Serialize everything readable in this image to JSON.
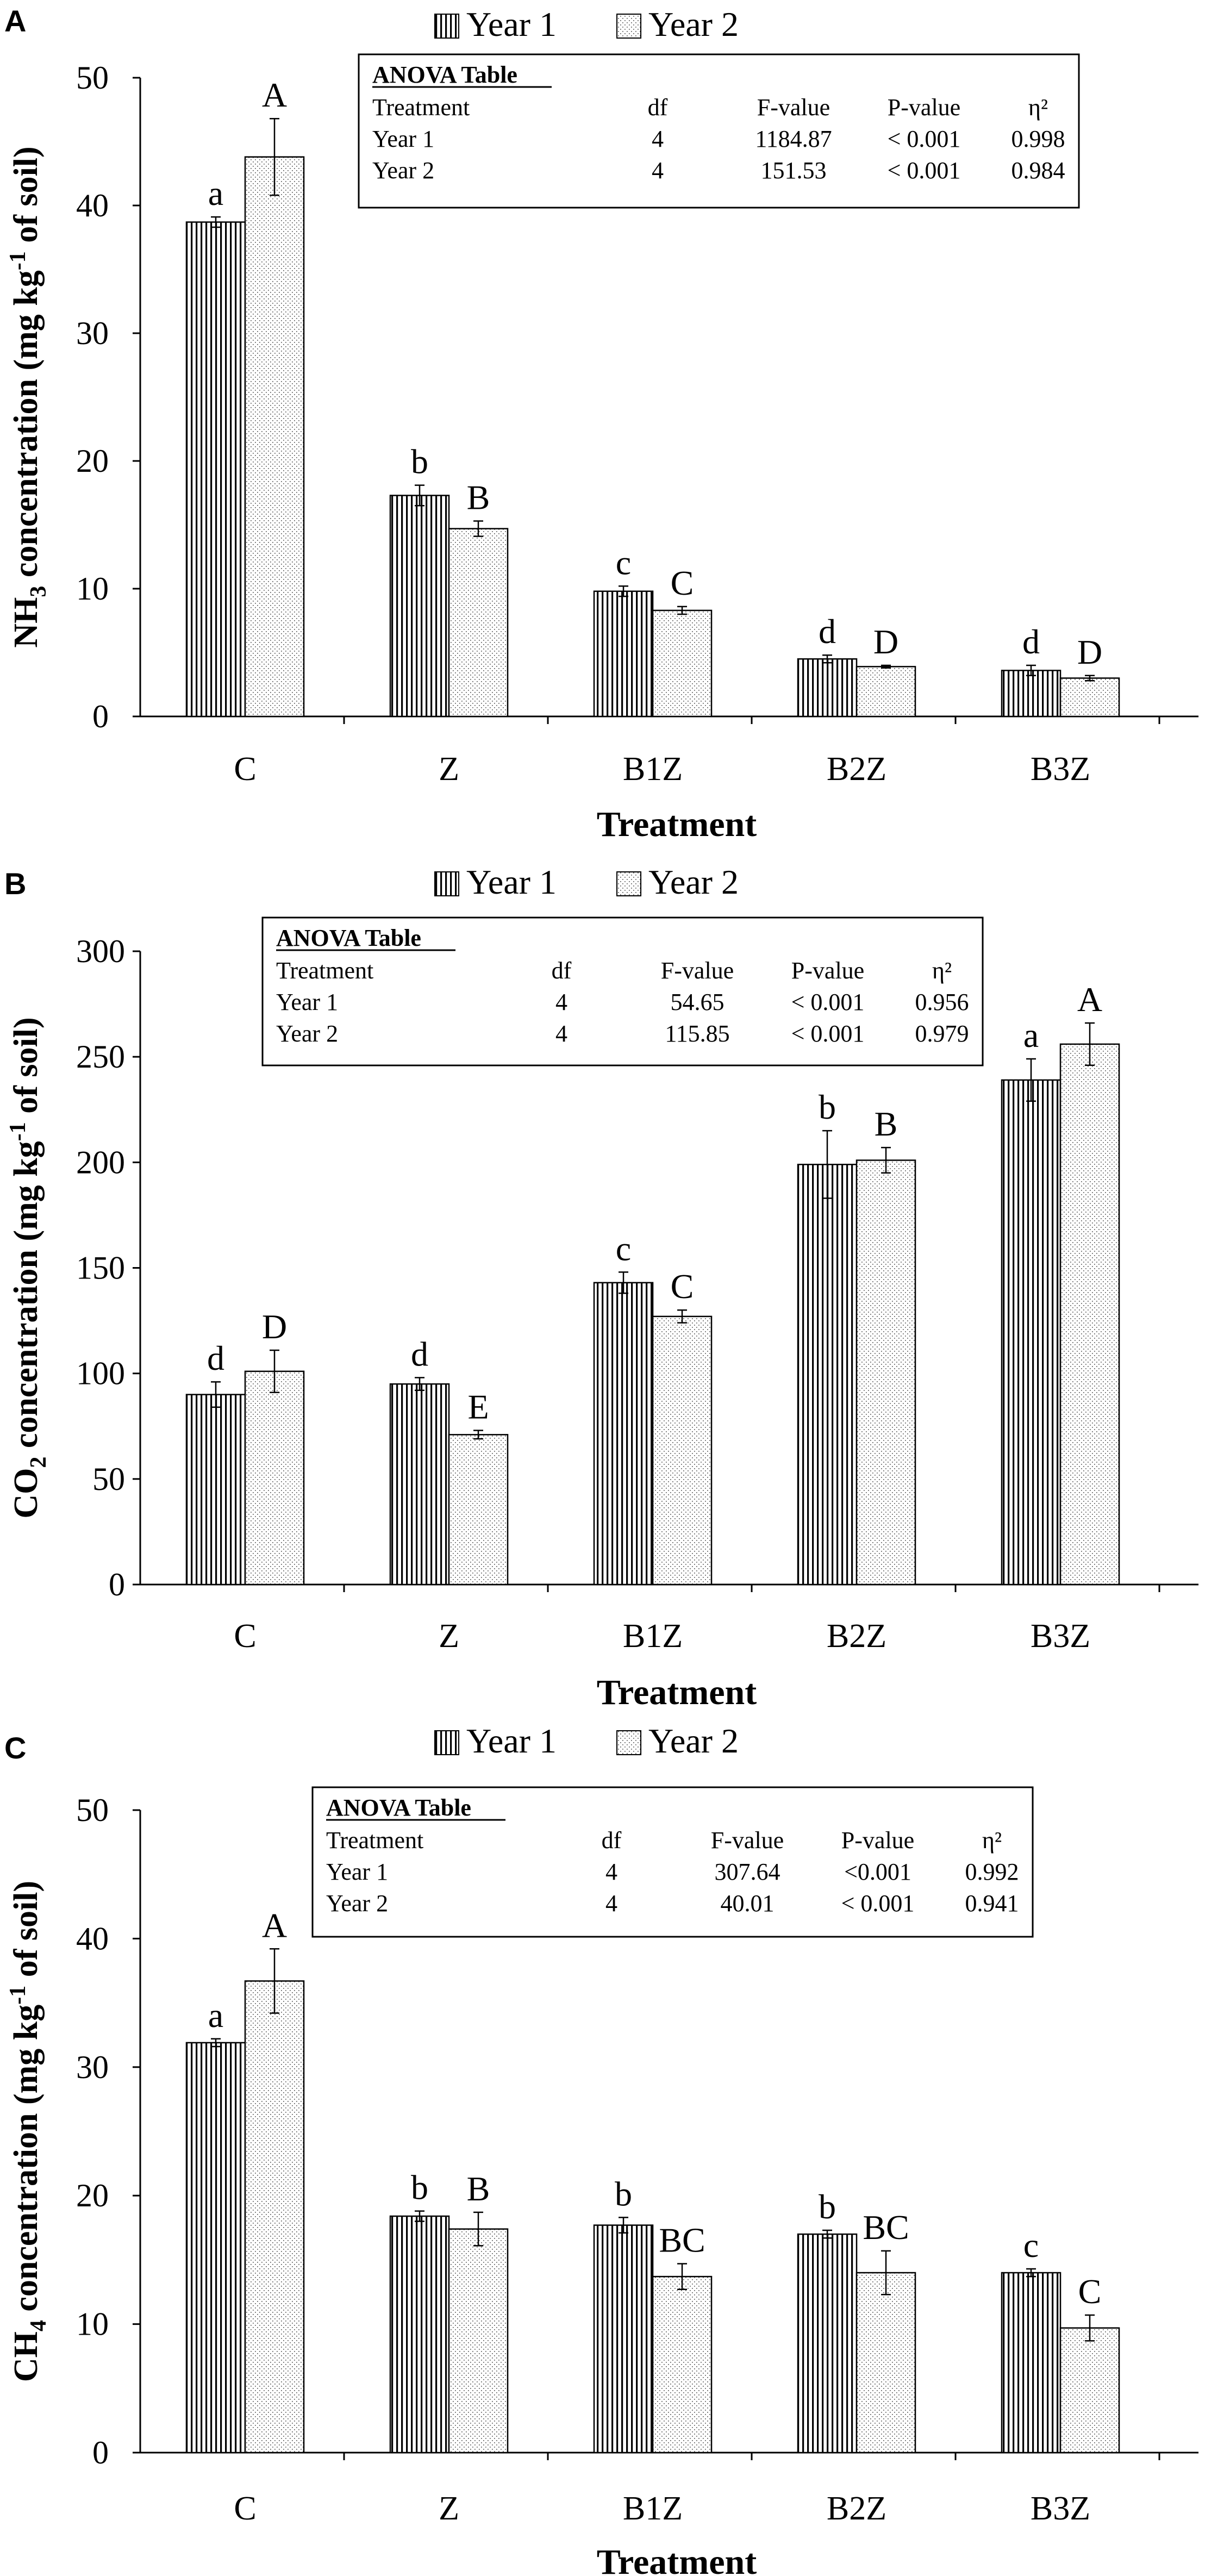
{
  "colors": {
    "background": "#ffffff",
    "ink": "#000000"
  },
  "chart_data": [
    {
      "panel": "A",
      "type": "bar",
      "title": "",
      "xlabel": "Treatment",
      "ylabel": "NH3 concentration (mg kg-1 of soil)",
      "ylabel_parts": {
        "pre": "NH",
        "sub": "3",
        "mid": " concentration (mg kg",
        "sup": "-1",
        "post": " of soil)"
      },
      "ylim": [
        0,
        50
      ],
      "yticks": [
        0,
        10,
        20,
        30,
        40,
        50
      ],
      "categories": [
        "C",
        "Z",
        "B1Z",
        "B2Z",
        "B3Z"
      ],
      "legend": [
        "Year 1",
        "Year 2"
      ],
      "legend_position": "top-center",
      "series": [
        {
          "name": "Year 1",
          "pattern": "vertical-lines",
          "values": [
            38.7,
            17.3,
            9.8,
            4.5,
            3.6
          ],
          "errors": [
            0.4,
            0.8,
            0.4,
            0.3,
            0.4
          ],
          "letters": [
            "a",
            "b",
            "c",
            "d",
            "d"
          ]
        },
        {
          "name": "Year 2",
          "pattern": "dots",
          "values": [
            43.8,
            14.7,
            8.3,
            3.9,
            3.0
          ],
          "errors": [
            3.0,
            0.6,
            0.3,
            0.1,
            0.2
          ],
          "letters": [
            "A",
            "B",
            "C",
            "D",
            "D"
          ]
        }
      ],
      "anova": {
        "title": "ANOVA Table",
        "headers": [
          "Treatment",
          "df",
          "F-value",
          "P-value",
          "η²"
        ],
        "rows": [
          [
            "Year 1",
            "4",
            "1184.87",
            "< 0.001",
            "0.998"
          ],
          [
            "Year 2",
            "4",
            "151.53",
            "< 0.001",
            "0.984"
          ]
        ]
      }
    },
    {
      "panel": "B",
      "type": "bar",
      "title": "",
      "xlabel": "Treatment",
      "ylabel": "CO2 concentration (mg kg-1 of soil)",
      "ylabel_parts": {
        "pre": "CO",
        "sub": "2",
        "mid": " concentration (mg kg",
        "sup": "-1",
        "post": " of soil)"
      },
      "ylim": [
        0,
        300
      ],
      "yticks": [
        0,
        50,
        100,
        150,
        200,
        250,
        300
      ],
      "categories": [
        "C",
        "Z",
        "B1Z",
        "B2Z",
        "B3Z"
      ],
      "legend": [
        "Year 1",
        "Year 2"
      ],
      "legend_position": "top-center",
      "series": [
        {
          "name": "Year 1",
          "pattern": "vertical-lines",
          "values": [
            90,
            95,
            143,
            199,
            239
          ],
          "errors": [
            6,
            3,
            5,
            16,
            10
          ],
          "letters": [
            "d",
            "d",
            "c",
            "b",
            "a"
          ]
        },
        {
          "name": "Year 2",
          "pattern": "dots",
          "values": [
            101,
            71,
            127,
            201,
            256
          ],
          "errors": [
            10,
            2,
            3,
            6,
            10
          ],
          "letters": [
            "D",
            "E",
            "C",
            "B",
            "A"
          ]
        }
      ],
      "anova": {
        "title": "ANOVA Table",
        "headers": [
          "Treatment",
          "df",
          "F-value",
          "P-value",
          "η²"
        ],
        "rows": [
          [
            "Year 1",
            "4",
            "54.65",
            "< 0.001",
            "0.956"
          ],
          [
            "Year 2",
            "4",
            "115.85",
            "< 0.001",
            "0.979"
          ]
        ]
      }
    },
    {
      "panel": "C",
      "type": "bar",
      "title": "",
      "xlabel": "Treatment",
      "ylabel": "CH4 concentration (mg kg-1 of soil)",
      "ylabel_parts": {
        "pre": "CH",
        "sub": "4",
        "mid": " concentration (mg kg",
        "sup": "-1",
        "post": " of soil)"
      },
      "ylim": [
        0,
        50
      ],
      "yticks": [
        0,
        10,
        20,
        30,
        40,
        50
      ],
      "categories": [
        "C",
        "Z",
        "B1Z",
        "B2Z",
        "B3Z"
      ],
      "legend": [
        "Year 1",
        "Year 2"
      ],
      "legend_position": "top-center",
      "series": [
        {
          "name": "Year 1",
          "pattern": "vertical-lines",
          "values": [
            31.9,
            18.4,
            17.7,
            17.0,
            14.0
          ],
          "errors": [
            0.3,
            0.4,
            0.6,
            0.3,
            0.3
          ],
          "letters": [
            "a",
            "b",
            "b",
            "b",
            "c"
          ]
        },
        {
          "name": "Year 2",
          "pattern": "dots",
          "values": [
            36.7,
            17.4,
            13.7,
            14.0,
            9.7
          ],
          "errors": [
            2.5,
            1.3,
            1.0,
            1.7,
            1.0
          ],
          "letters": [
            "A",
            "B",
            "BC",
            "BC",
            "C"
          ]
        }
      ],
      "anova": {
        "title": "ANOVA Table",
        "headers": [
          "Treatment",
          "df",
          "F-value",
          "P-value",
          "η²"
        ],
        "rows": [
          [
            "Year 1",
            "4",
            "307.64",
            "<0.001",
            "0.992"
          ],
          [
            "Year 2",
            "4",
            "40.01",
            "< 0.001",
            "0.941"
          ]
        ]
      }
    }
  ]
}
